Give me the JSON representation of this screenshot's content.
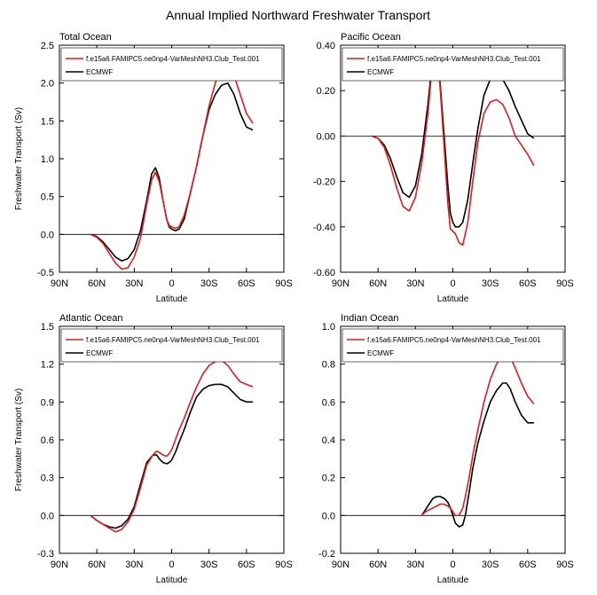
{
  "figure": {
    "title": "Annual Implied Northward Freshwater Transport"
  },
  "legend": {
    "series": [
      {
        "name": "f.e15a6.FAMIPC5.ne0np4-VarMeshNH3.Club_Test.001",
        "color": "#e41a1c"
      },
      {
        "name": "ECMWF",
        "color": "#000000"
      }
    ]
  },
  "chart_data": [
    {
      "type": "line",
      "title": "Total Ocean",
      "xlabel": "Latitude",
      "ylabel": "Freshwater Transport (Sv)",
      "xlim": [
        90,
        -90
      ],
      "xticks": [
        90,
        60,
        30,
        0,
        -30,
        -60,
        -90
      ],
      "xtick_labels": [
        "90N",
        "60N",
        "30N",
        "0",
        "30S",
        "60S",
        "90S"
      ],
      "ylim": [
        -0.5,
        2.5
      ],
      "yticks": [
        -0.5,
        0.0,
        0.5,
        1.0,
        1.5,
        2.0,
        2.5
      ],
      "ytick_labels": [
        "-0.5",
        "0.0",
        "0.5",
        "1.0",
        "1.5",
        "2.0",
        "2.5"
      ],
      "legend_position": "top-left",
      "zero_line": true,
      "series": [
        {
          "name": "f.e15a6.FAMIPC5.ne0np4-VarMeshNH3.Club_Test.001",
          "color": "#e41a1c",
          "x": [
            65,
            60,
            55,
            50,
            45,
            40,
            35,
            30,
            25,
            20,
            16,
            13,
            10,
            7,
            4,
            2,
            0,
            -3,
            -6,
            -10,
            -15,
            -20,
            -25,
            -30,
            -35,
            -40,
            -45,
            -50,
            -55,
            -60,
            -65
          ],
          "y": [
            0.0,
            -0.04,
            -0.12,
            -0.25,
            -0.38,
            -0.46,
            -0.44,
            -0.3,
            -0.05,
            0.4,
            0.72,
            0.82,
            0.7,
            0.45,
            0.2,
            0.12,
            0.1,
            0.08,
            0.1,
            0.25,
            0.55,
            0.9,
            1.3,
            1.7,
            2.0,
            2.2,
            2.25,
            2.1,
            1.85,
            1.6,
            1.47
          ]
        },
        {
          "name": "ECMWF",
          "color": "#000000",
          "x": [
            65,
            60,
            55,
            50,
            45,
            40,
            35,
            30,
            25,
            20,
            16,
            13,
            10,
            7,
            4,
            2,
            0,
            -3,
            -6,
            -10,
            -15,
            -20,
            -25,
            -30,
            -35,
            -40,
            -45,
            -50,
            -55,
            -60,
            -65
          ],
          "y": [
            0.0,
            -0.03,
            -0.1,
            -0.2,
            -0.3,
            -0.35,
            -0.32,
            -0.2,
            0.05,
            0.45,
            0.8,
            0.88,
            0.75,
            0.45,
            0.2,
            0.1,
            0.07,
            0.05,
            0.07,
            0.2,
            0.55,
            0.9,
            1.3,
            1.65,
            1.85,
            1.97,
            2.0,
            1.85,
            1.6,
            1.42,
            1.38
          ]
        }
      ]
    },
    {
      "type": "line",
      "title": "Pacific Ocean",
      "xlabel": "Latitude",
      "ylabel": "",
      "xlim": [
        90,
        -90
      ],
      "xticks": [
        90,
        60,
        30,
        0,
        -30,
        -60,
        -90
      ],
      "xtick_labels": [
        "90N",
        "60N",
        "30N",
        "0",
        "30S",
        "60S",
        "90S"
      ],
      "ylim": [
        -0.6,
        0.4
      ],
      "yticks": [
        -0.6,
        -0.4,
        -0.2,
        0.0,
        0.2,
        0.4
      ],
      "ytick_labels": [
        "-0.60",
        "-0.40",
        "-0.20",
        "0.00",
        "0.20",
        "0.40"
      ],
      "legend_position": "top-left",
      "zero_line": true,
      "series": [
        {
          "name": "f.e15a6.FAMIPC5.ne0np4-VarMeshNH3.Club_Test.001",
          "color": "#e41a1c",
          "x": [
            65,
            60,
            55,
            50,
            45,
            40,
            35,
            30,
            25,
            20,
            17,
            14,
            12,
            10,
            7,
            4,
            2,
            0,
            -2,
            -5,
            -8,
            -12,
            -16,
            -20,
            -25,
            -30,
            -35,
            -40,
            -45,
            -50,
            -55,
            -60,
            -65
          ],
          "y": [
            0.0,
            -0.01,
            -0.05,
            -0.13,
            -0.23,
            -0.31,
            -0.33,
            -0.27,
            -0.12,
            0.1,
            0.28,
            0.36,
            0.33,
            0.2,
            -0.05,
            -0.3,
            -0.41,
            -0.42,
            -0.43,
            -0.47,
            -0.48,
            -0.38,
            -0.2,
            -0.03,
            0.1,
            0.15,
            0.16,
            0.14,
            0.08,
            0.0,
            -0.04,
            -0.08,
            -0.13
          ]
        },
        {
          "name": "ECMWF",
          "color": "#000000",
          "x": [
            65,
            60,
            55,
            50,
            45,
            40,
            35,
            30,
            25,
            20,
            17,
            14,
            12,
            10,
            7,
            4,
            2,
            0,
            -2,
            -5,
            -8,
            -12,
            -16,
            -20,
            -25,
            -30,
            -35,
            -40,
            -45,
            -50,
            -55,
            -60,
            -65
          ],
          "y": [
            0.0,
            -0.01,
            -0.04,
            -0.1,
            -0.18,
            -0.25,
            -0.27,
            -0.22,
            -0.08,
            0.14,
            0.3,
            0.37,
            0.34,
            0.22,
            0.0,
            -0.22,
            -0.34,
            -0.38,
            -0.4,
            -0.4,
            -0.38,
            -0.28,
            -0.12,
            0.03,
            0.18,
            0.25,
            0.27,
            0.25,
            0.2,
            0.13,
            0.07,
            0.01,
            -0.01
          ]
        }
      ]
    },
    {
      "type": "line",
      "title": "Atlantic Ocean",
      "xlabel": "Latitude",
      "ylabel": "Freshwater Transport (Sv)",
      "xlim": [
        90,
        -90
      ],
      "xticks": [
        90,
        60,
        30,
        0,
        -30,
        -60,
        -90
      ],
      "xtick_labels": [
        "90N",
        "60N",
        "30N",
        "0",
        "30S",
        "60S",
        "90S"
      ],
      "ylim": [
        -0.3,
        1.5
      ],
      "yticks": [
        -0.3,
        0.0,
        0.3,
        0.6,
        0.9,
        1.2,
        1.5
      ],
      "ytick_labels": [
        "-0.3",
        "0.0",
        "0.3",
        "0.6",
        "0.9",
        "1.2",
        "1.5"
      ],
      "legend_position": "top-left",
      "zero_line": true,
      "series": [
        {
          "name": "f.e15a6.FAMIPC5.ne0np4-VarMeshNH3.Club_Test.001",
          "color": "#e41a1c",
          "x": [
            65,
            60,
            55,
            50,
            45,
            40,
            35,
            30,
            25,
            20,
            15,
            12,
            10,
            7,
            4,
            2,
            0,
            -3,
            -6,
            -10,
            -15,
            -20,
            -25,
            -30,
            -35,
            -40,
            -45,
            -50,
            -55,
            -60,
            -65
          ],
          "y": [
            0.0,
            -0.04,
            -0.07,
            -0.1,
            -0.13,
            -0.11,
            -0.05,
            0.05,
            0.22,
            0.4,
            0.48,
            0.51,
            0.5,
            0.48,
            0.47,
            0.49,
            0.52,
            0.6,
            0.68,
            0.77,
            0.9,
            1.02,
            1.12,
            1.19,
            1.22,
            1.23,
            1.19,
            1.12,
            1.06,
            1.04,
            1.02
          ]
        },
        {
          "name": "ECMWF",
          "color": "#000000",
          "x": [
            65,
            60,
            55,
            50,
            45,
            40,
            35,
            30,
            25,
            20,
            15,
            12,
            10,
            7,
            4,
            2,
            0,
            -3,
            -6,
            -10,
            -15,
            -20,
            -25,
            -30,
            -35,
            -40,
            -45,
            -50,
            -55,
            -60,
            -65
          ],
          "y": [
            0.0,
            -0.04,
            -0.07,
            -0.09,
            -0.1,
            -0.08,
            -0.03,
            0.07,
            0.25,
            0.42,
            0.48,
            0.48,
            0.45,
            0.42,
            0.41,
            0.42,
            0.44,
            0.5,
            0.58,
            0.68,
            0.82,
            0.94,
            1.0,
            1.03,
            1.04,
            1.04,
            1.02,
            0.97,
            0.92,
            0.9,
            0.9
          ]
        }
      ]
    },
    {
      "type": "line",
      "title": "Indian Ocean",
      "xlabel": "Latitude",
      "ylabel": "",
      "xlim": [
        90,
        -90
      ],
      "xticks": [
        90,
        60,
        30,
        0,
        -30,
        -60,
        -90
      ],
      "xtick_labels": [
        "90N",
        "60N",
        "30N",
        "0",
        "30S",
        "60S",
        "90S"
      ],
      "ylim": [
        -0.2,
        1.0
      ],
      "yticks": [
        -0.2,
        0.0,
        0.2,
        0.4,
        0.6,
        0.8,
        1.0
      ],
      "ytick_labels": [
        "-0.2",
        "0.0",
        "0.2",
        "0.4",
        "0.6",
        "0.8",
        "1.0"
      ],
      "legend_position": "top-left",
      "zero_line": true,
      "series": [
        {
          "name": "f.e15a6.FAMIPC5.ne0np4-VarMeshNH3.Club_Test.001",
          "color": "#e41a1c",
          "x": [
            25,
            22,
            19,
            16,
            13,
            10,
            7,
            4,
            2,
            0,
            -2,
            -5,
            -8,
            -10,
            -13,
            -16,
            -20,
            -25,
            -30,
            -35,
            -40,
            -43,
            -46,
            -50,
            -55,
            -60,
            -65
          ],
          "y": [
            0.0,
            0.02,
            0.03,
            0.04,
            0.05,
            0.06,
            0.06,
            0.05,
            0.04,
            0.02,
            0.0,
            0.0,
            0.04,
            0.1,
            0.2,
            0.32,
            0.45,
            0.6,
            0.72,
            0.8,
            0.85,
            0.86,
            0.84,
            0.78,
            0.7,
            0.63,
            0.59
          ]
        },
        {
          "name": "ECMWF",
          "color": "#000000",
          "x": [
            25,
            22,
            19,
            16,
            13,
            10,
            7,
            4,
            2,
            0,
            -2,
            -5,
            -8,
            -10,
            -13,
            -16,
            -20,
            -25,
            -30,
            -35,
            -40,
            -43,
            -46,
            -50,
            -55,
            -60,
            -65
          ],
          "y": [
            0.0,
            0.03,
            0.06,
            0.09,
            0.1,
            0.1,
            0.09,
            0.07,
            0.04,
            0.0,
            -0.04,
            -0.06,
            -0.05,
            0.0,
            0.12,
            0.25,
            0.38,
            0.5,
            0.6,
            0.66,
            0.7,
            0.7,
            0.67,
            0.6,
            0.53,
            0.49,
            0.49
          ]
        }
      ]
    }
  ]
}
